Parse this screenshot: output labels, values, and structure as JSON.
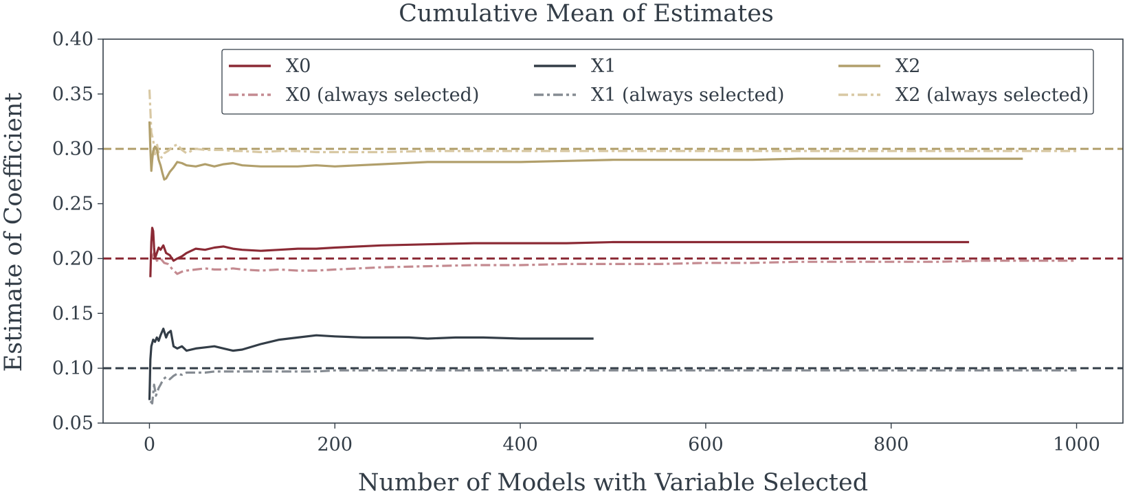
{
  "chart_data": {
    "type": "line",
    "title": "Cumulative Mean of Estimates",
    "xlabel": "Number of Models with Variable Selected",
    "ylabel": "Estimate of Coefficient",
    "xlim": [
      -50,
      1050
    ],
    "ylim": [
      0.05,
      0.4
    ],
    "xticks": [
      0,
      200,
      400,
      600,
      800,
      1000
    ],
    "yticks": [
      0.05,
      0.1,
      0.15,
      0.2,
      0.25,
      0.3,
      0.35,
      0.4
    ],
    "xtick_labels": [
      "0",
      "200",
      "400",
      "600",
      "800",
      "1000"
    ],
    "ytick_labels": [
      "0.05",
      "0.10",
      "0.15",
      "0.20",
      "0.25",
      "0.30",
      "0.35",
      "0.40"
    ],
    "grid": false,
    "legend_position": "top-right",
    "reference_lines": [
      {
        "y": 0.2,
        "color": "#8b2a35"
      },
      {
        "y": 0.1,
        "color": "#333d47"
      },
      {
        "y": 0.3,
        "color": "#b19f6b"
      }
    ],
    "series": [
      {
        "name": "X0",
        "color": "#8b2a35",
        "style": "solid",
        "x": [
          1,
          2,
          3,
          4,
          5,
          6,
          8,
          10,
          12,
          15,
          18,
          22,
          26,
          30,
          35,
          40,
          45,
          50,
          60,
          70,
          80,
          90,
          100,
          120,
          140,
          160,
          180,
          200,
          250,
          300,
          350,
          400,
          450,
          500,
          550,
          600,
          650,
          700,
          750,
          800,
          850,
          884
        ],
        "y": [
          0.183,
          0.215,
          0.228,
          0.225,
          0.21,
          0.2,
          0.205,
          0.21,
          0.208,
          0.212,
          0.205,
          0.203,
          0.198,
          0.2,
          0.202,
          0.205,
          0.207,
          0.209,
          0.208,
          0.21,
          0.211,
          0.209,
          0.208,
          0.207,
          0.208,
          0.209,
          0.209,
          0.21,
          0.212,
          0.213,
          0.214,
          0.214,
          0.214,
          0.215,
          0.215,
          0.215,
          0.215,
          0.215,
          0.215,
          0.215,
          0.215,
          0.215
        ]
      },
      {
        "name": "X0 (always selected)",
        "color": "#c48a90",
        "style": "dashdot",
        "x": [
          2,
          5,
          8,
          12,
          16,
          20,
          25,
          30,
          35,
          40,
          50,
          60,
          70,
          80,
          90,
          100,
          120,
          140,
          160,
          180,
          200,
          250,
          300,
          350,
          400,
          450,
          500,
          550,
          600,
          650,
          700,
          750,
          800,
          850,
          900,
          950,
          1000
        ],
        "y": [
          0.2,
          0.205,
          0.198,
          0.2,
          0.196,
          0.195,
          0.19,
          0.186,
          0.188,
          0.189,
          0.19,
          0.191,
          0.19,
          0.19,
          0.191,
          0.19,
          0.189,
          0.19,
          0.189,
          0.189,
          0.19,
          0.192,
          0.193,
          0.194,
          0.194,
          0.195,
          0.195,
          0.195,
          0.196,
          0.196,
          0.197,
          0.197,
          0.197,
          0.197,
          0.198,
          0.198,
          0.198
        ]
      },
      {
        "name": "X1",
        "color": "#333d47",
        "style": "solid",
        "x": [
          0,
          1,
          2,
          4,
          6,
          8,
          10,
          12,
          15,
          18,
          20,
          23,
          26,
          30,
          35,
          40,
          50,
          60,
          70,
          80,
          90,
          100,
          120,
          140,
          160,
          180,
          200,
          230,
          260,
          280,
          300,
          330,
          360,
          400,
          440,
          479
        ],
        "y": [
          0.071,
          0.108,
          0.12,
          0.126,
          0.124,
          0.128,
          0.125,
          0.13,
          0.136,
          0.128,
          0.132,
          0.134,
          0.12,
          0.118,
          0.12,
          0.116,
          0.118,
          0.119,
          0.12,
          0.118,
          0.116,
          0.117,
          0.122,
          0.126,
          0.128,
          0.13,
          0.129,
          0.128,
          0.128,
          0.128,
          0.127,
          0.128,
          0.128,
          0.127,
          0.127,
          0.127
        ]
      },
      {
        "name": "X1 (always selected)",
        "color": "#858b92",
        "style": "dashdot",
        "x": [
          1,
          3,
          5,
          7,
          10,
          12,
          15,
          18,
          22,
          26,
          30,
          35,
          40,
          50,
          60,
          70,
          80,
          90,
          100,
          120,
          140,
          160,
          180,
          200,
          250,
          300,
          350,
          400,
          450,
          500,
          550,
          600,
          650,
          700,
          750,
          800,
          850,
          900,
          950,
          1000
        ],
        "y": [
          0.07,
          0.068,
          0.085,
          0.075,
          0.082,
          0.085,
          0.09,
          0.092,
          0.09,
          0.093,
          0.095,
          0.094,
          0.096,
          0.096,
          0.096,
          0.097,
          0.097,
          0.097,
          0.097,
          0.097,
          0.097,
          0.097,
          0.097,
          0.098,
          0.098,
          0.098,
          0.098,
          0.098,
          0.098,
          0.098,
          0.098,
          0.098,
          0.098,
          0.098,
          0.098,
          0.098,
          0.098,
          0.098,
          0.098,
          0.098
        ]
      },
      {
        "name": "X2",
        "color": "#b19f6b",
        "style": "solid",
        "x": [
          0,
          1,
          2,
          3,
          4,
          6,
          8,
          10,
          12,
          14,
          16,
          18,
          22,
          26,
          30,
          35,
          40,
          50,
          60,
          70,
          80,
          90,
          100,
          120,
          140,
          160,
          180,
          200,
          250,
          300,
          350,
          400,
          450,
          500,
          550,
          600,
          650,
          700,
          750,
          800,
          850,
          900,
          942
        ],
        "y": [
          0.325,
          0.3,
          0.28,
          0.29,
          0.298,
          0.302,
          0.3,
          0.29,
          0.285,
          0.278,
          0.272,
          0.273,
          0.279,
          0.283,
          0.288,
          0.287,
          0.285,
          0.284,
          0.286,
          0.284,
          0.286,
          0.287,
          0.285,
          0.284,
          0.284,
          0.284,
          0.285,
          0.284,
          0.286,
          0.288,
          0.288,
          0.288,
          0.289,
          0.29,
          0.29,
          0.29,
          0.29,
          0.291,
          0.291,
          0.291,
          0.291,
          0.291,
          0.291
        ]
      },
      {
        "name": "X2 (always selected)",
        "color": "#d8c8a3",
        "style": "dashdot",
        "x": [
          0,
          2,
          4,
          6,
          8,
          10,
          13,
          16,
          20,
          25,
          30,
          35,
          40,
          50,
          60,
          70,
          80,
          90,
          100,
          120,
          140,
          160,
          180,
          200,
          250,
          300,
          350,
          400,
          450,
          500,
          550,
          600,
          650,
          700,
          750,
          800,
          850,
          900,
          950,
          1000
        ],
        "y": [
          0.354,
          0.315,
          0.308,
          0.295,
          0.305,
          0.296,
          0.292,
          0.296,
          0.298,
          0.302,
          0.304,
          0.299,
          0.296,
          0.3,
          0.299,
          0.299,
          0.299,
          0.298,
          0.298,
          0.297,
          0.298,
          0.298,
          0.297,
          0.297,
          0.297,
          0.298,
          0.298,
          0.298,
          0.298,
          0.298,
          0.298,
          0.298,
          0.298,
          0.298,
          0.298,
          0.298,
          0.298,
          0.298,
          0.298,
          0.298
        ]
      }
    ]
  }
}
